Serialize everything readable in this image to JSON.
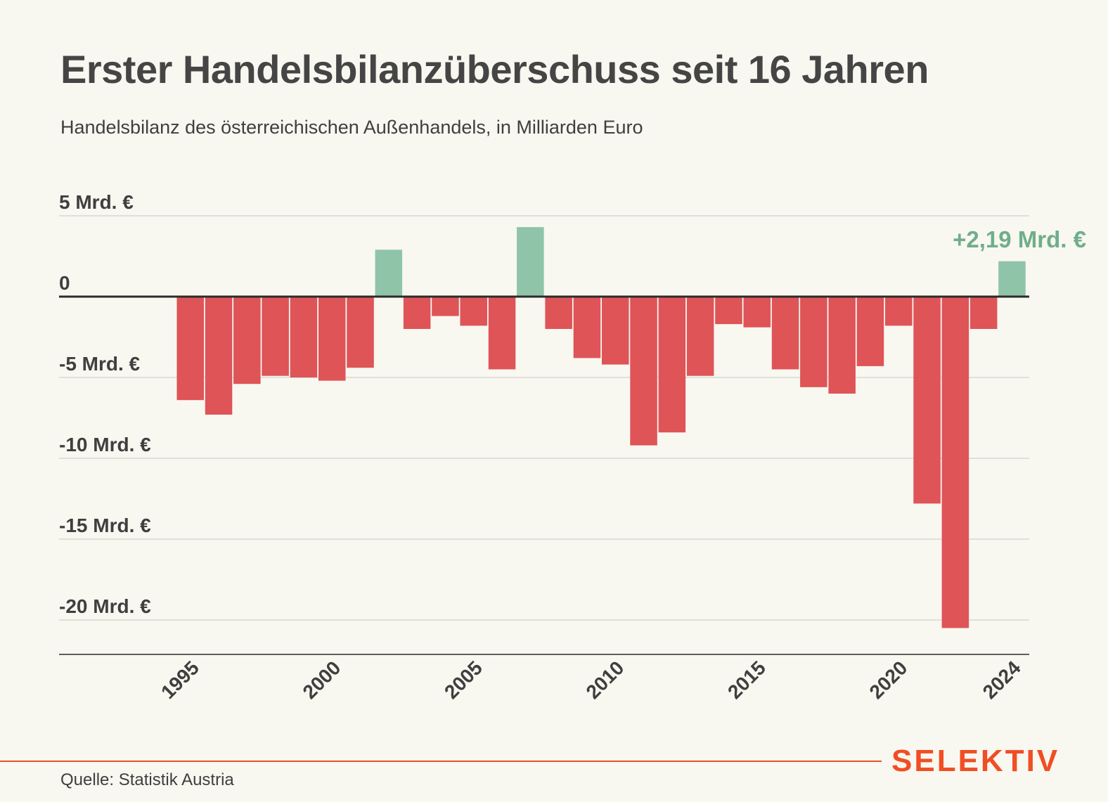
{
  "title": "Erster Handelsbilanzüberschuss seit 16 Jahren",
  "subtitle": "Handelsbilanz des österreichischen Außenhandels, in Milliarden Euro",
  "source": "Quelle: Statistik Austria",
  "logo": "SELEKTIV",
  "colors": {
    "negative": "#de5457",
    "positive": "#8fc4a8",
    "annotation": "#6fae8a",
    "accent": "#f04e23"
  },
  "chart_data": {
    "type": "bar",
    "x": [
      1991,
      1992,
      1993,
      1994,
      1995,
      1996,
      1997,
      1998,
      1999,
      2000,
      2001,
      2002,
      2003,
      2004,
      2005,
      2006,
      2007,
      2008,
      2009,
      2010,
      2011,
      2012,
      2013,
      2014,
      2015,
      2016,
      2017,
      2018,
      2019,
      2020,
      2021,
      2022,
      2023,
      2024
    ],
    "values": [
      null,
      null,
      null,
      null,
      -6.4,
      -7.3,
      -5.4,
      -4.9,
      -5.0,
      -5.2,
      -4.4,
      2.9,
      -2.0,
      -1.2,
      -1.8,
      -4.5,
      4.3,
      -2.0,
      -3.8,
      -4.2,
      -9.2,
      -8.4,
      -4.9,
      -1.7,
      -1.9,
      -4.5,
      -5.6,
      -6.0,
      -4.3,
      -1.8,
      -12.8,
      -20.5,
      -2.0,
      2.19
    ],
    "xticks": [
      "1995",
      "2000",
      "2005",
      "2010",
      "2015",
      "2020",
      "2024"
    ],
    "yticks": [
      {
        "value": 5,
        "label": "5 Mrd. €"
      },
      {
        "value": 0,
        "label": "0"
      },
      {
        "value": -5,
        "label": "-5 Mrd. €"
      },
      {
        "value": -10,
        "label": "-10 Mrd. €"
      },
      {
        "value": -15,
        "label": "-15 Mrd. €"
      },
      {
        "value": -20,
        "label": "-20 Mrd. €"
      }
    ],
    "ylim": [
      -22.2,
      5
    ],
    "annotation": {
      "x": 2024,
      "label": "+2,19 Mrd. €"
    },
    "grid": true
  }
}
